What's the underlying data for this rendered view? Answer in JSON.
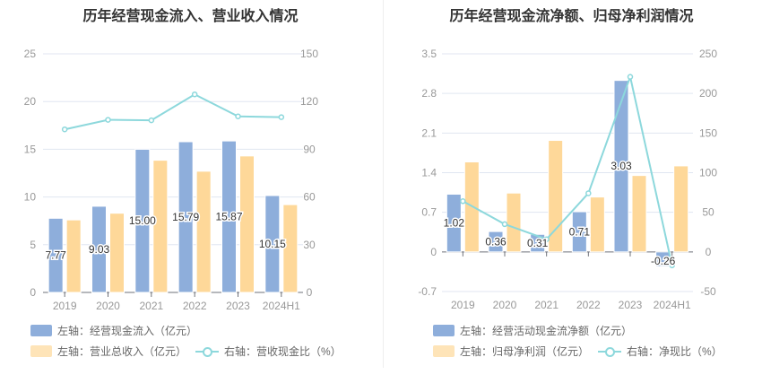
{
  "colors": {
    "bar1": "#8eaedb",
    "bar2": "#fed899",
    "line": "#8dd8dc",
    "grid": "#e0e6f1",
    "axis_text": "#999",
    "label": "#333"
  },
  "chart_data": [
    {
      "type": "bar",
      "title": "历年经营现金流入、营业收入情况",
      "categories": [
        "2019",
        "2020",
        "2021",
        "2022",
        "2023",
        "2024H1"
      ],
      "ylim": [
        0,
        25
      ],
      "yticks": [
        "0",
        "5",
        "10",
        "15",
        "20",
        "25"
      ],
      "y2lim": [
        0,
        150
      ],
      "y2ticks": [
        "0",
        "30",
        "60",
        "90",
        "120",
        "150"
      ],
      "series": [
        {
          "name": "左轴：经营现金流入（亿元）",
          "kind": "bar",
          "axis": "left",
          "values": [
            7.77,
            9.03,
            15.0,
            15.79,
            15.87,
            10.15
          ],
          "labels": [
            "7.77",
            "9.03",
            "15.00",
            "15.79",
            "15.87",
            "10.15"
          ]
        },
        {
          "name": "左轴：营业总收入（亿元）",
          "kind": "bar",
          "axis": "left",
          "values": [
            7.6,
            8.3,
            13.85,
            12.7,
            14.3,
            9.2
          ]
        },
        {
          "name": "右轴：营收现金比（%）",
          "kind": "line",
          "axis": "right",
          "values": [
            102.5,
            108.5,
            108.2,
            124.5,
            110.7,
            110.2
          ]
        }
      ]
    },
    {
      "type": "bar",
      "title": "历年经营现金流净额、归母净利润情况",
      "categories": [
        "2019",
        "2020",
        "2021",
        "2022",
        "2023",
        "2024H1"
      ],
      "ylim": [
        -0.7,
        3.5
      ],
      "yticks": [
        "-0.7",
        "0",
        "0.7",
        "1.4",
        "2.1",
        "2.8",
        "3.5"
      ],
      "y2lim": [
        -50,
        250
      ],
      "y2ticks": [
        "-50",
        "0",
        "50",
        "100",
        "150",
        "200",
        "250"
      ],
      "series": [
        {
          "name": "左轴：经营活动现金流净额（亿元）",
          "kind": "bar",
          "axis": "left",
          "values": [
            1.02,
            0.36,
            0.31,
            0.71,
            3.03,
            -0.26
          ],
          "labels": [
            "1.02",
            "0.36",
            "0.31",
            "0.71",
            "3.03",
            "-0.26"
          ]
        },
        {
          "name": "左轴：归母净利润（亿元）",
          "kind": "bar",
          "axis": "left",
          "values": [
            1.59,
            1.04,
            1.97,
            0.97,
            1.35,
            1.52
          ]
        },
        {
          "name": "右轴：净现比（%）",
          "kind": "line",
          "axis": "right",
          "values": [
            64,
            35,
            16,
            74,
            221,
            -17
          ]
        }
      ]
    }
  ]
}
